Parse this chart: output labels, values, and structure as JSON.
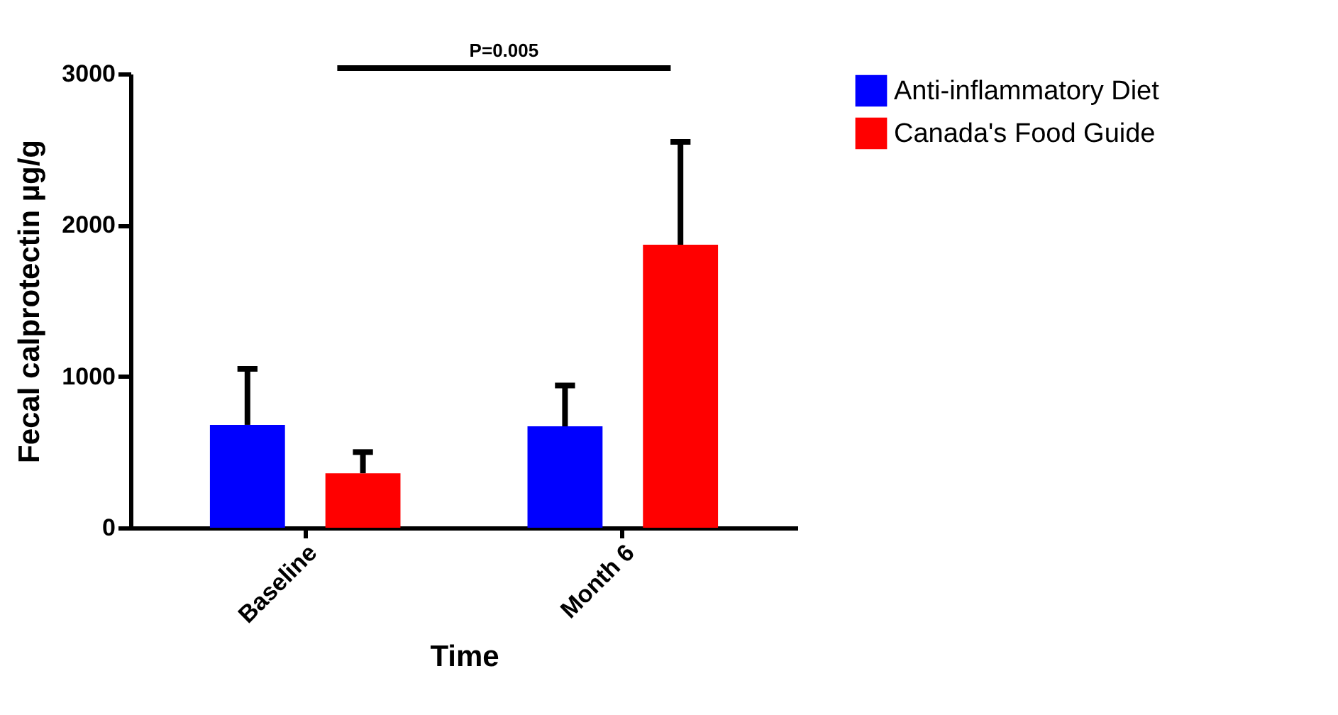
{
  "chart_data": {
    "type": "bar",
    "xlabel": "Time",
    "ylabel": "Fecal calprotectin µg/g",
    "categories": [
      "Baseline",
      "Month 6"
    ],
    "series": [
      {
        "name": "Anti-inflammatory Diet",
        "color": "#0000ff",
        "values": [
          680,
          670
        ],
        "errors": [
          [
            680,
            1050
          ],
          [
            670,
            940
          ]
        ]
      },
      {
        "name": "Canada's Food Guide",
        "color": "#ff0000",
        "values": [
          360,
          1870
        ],
        "errors": [
          [
            360,
            500
          ],
          [
            1870,
            2550
          ]
        ]
      }
    ],
    "ylim": [
      0,
      3000
    ],
    "yticks": [
      0,
      1000,
      2000,
      3000
    ],
    "grid": false,
    "legend": "top right",
    "annotations": [
      "P=0.005"
    ]
  }
}
